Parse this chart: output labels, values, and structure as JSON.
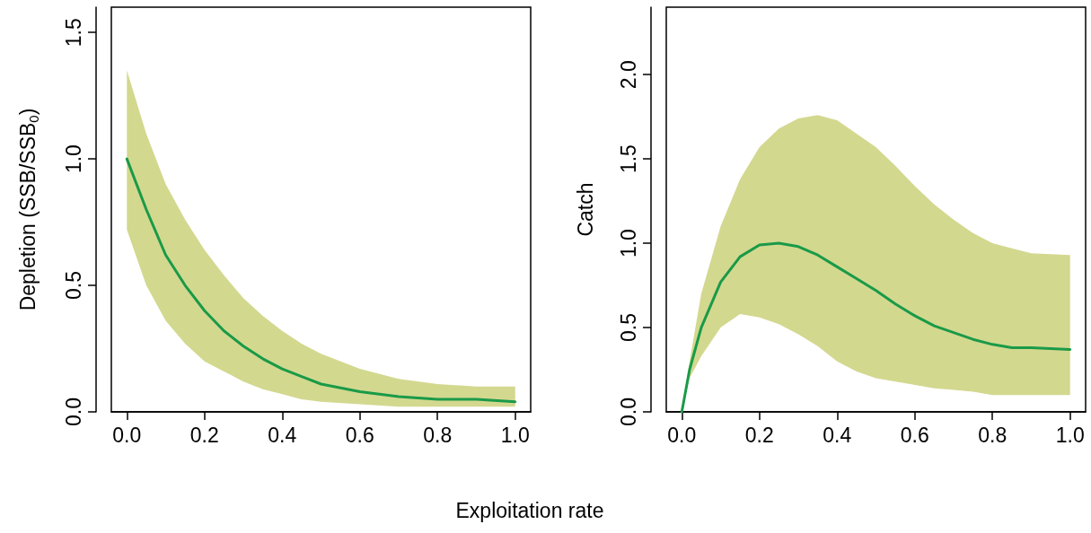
{
  "chart_data": [
    {
      "type": "line",
      "xlabel": "Exploitation rate",
      "ylabel": "Depletion (SSB/SSB$_{0}$)",
      "x": [
        0,
        0.05,
        0.1,
        0.15,
        0.2,
        0.25,
        0.3,
        0.35,
        0.4,
        0.45,
        0.5,
        0.6,
        0.7,
        0.8,
        0.9,
        1.0
      ],
      "series": [
        {
          "color": "#1a9a48",
          "values": [
            1.0,
            0.8,
            0.62,
            0.5,
            0.4,
            0.32,
            0.26,
            0.21,
            0.17,
            0.14,
            0.11,
            0.08,
            0.06,
            0.05,
            0.05,
            0.04
          ],
          "lower": [
            0.72,
            0.5,
            0.36,
            0.27,
            0.2,
            0.16,
            0.12,
            0.09,
            0.07,
            0.05,
            0.04,
            0.03,
            0.02,
            0.02,
            0.02,
            0.02
          ],
          "upper": [
            1.35,
            1.1,
            0.9,
            0.76,
            0.64,
            0.54,
            0.45,
            0.38,
            0.32,
            0.27,
            0.23,
            0.17,
            0.13,
            0.11,
            0.1,
            0.1
          ]
        }
      ],
      "xlim": [
        -0.04,
        1.04
      ],
      "xticks": [
        {
          "value": 0,
          "label": "0.0"
        },
        {
          "value": 0.2,
          "label": "0.2"
        },
        {
          "value": 0.4,
          "label": "0.4"
        },
        {
          "value": 0.6,
          "label": "0.6"
        },
        {
          "value": 0.8,
          "label": "0.8"
        },
        {
          "value": 1,
          "label": "1.0"
        }
      ],
      "ylim": [
        0,
        1.6
      ],
      "yticks": [
        {
          "value": 0,
          "label": "0.0"
        },
        {
          "value": 0.5,
          "label": "0.5"
        },
        {
          "value": 1,
          "label": "1.0"
        },
        {
          "value": 1.5,
          "label": "1.5"
        }
      ],
      "grid": false,
      "marker": "none",
      "line_style": "solid"
    },
    {
      "type": "line",
      "ylabel": "Catch",
      "x": [
        0,
        0.02,
        0.05,
        0.1,
        0.15,
        0.2,
        0.25,
        0.3,
        0.35,
        0.4,
        0.45,
        0.5,
        0.55,
        0.6,
        0.65,
        0.7,
        0.75,
        0.8,
        0.85,
        0.9,
        1.0
      ],
      "series": [
        {
          "color": "#1a9a48",
          "values": [
            0,
            0.25,
            0.5,
            0.77,
            0.92,
            0.99,
            1.0,
            0.98,
            0.93,
            0.86,
            0.79,
            0.72,
            0.64,
            0.57,
            0.51,
            0.47,
            0.43,
            0.4,
            0.38,
            0.38,
            0.37
          ],
          "lower": [
            0,
            0.2,
            0.33,
            0.5,
            0.58,
            0.56,
            0.52,
            0.46,
            0.39,
            0.3,
            0.24,
            0.2,
            0.18,
            0.16,
            0.14,
            0.13,
            0.12,
            0.1,
            0.1,
            0.1,
            0.1
          ],
          "upper": [
            0,
            0.3,
            0.7,
            1.1,
            1.38,
            1.57,
            1.68,
            1.74,
            1.76,
            1.73,
            1.65,
            1.57,
            1.46,
            1.34,
            1.23,
            1.14,
            1.06,
            1.0,
            0.97,
            0.94,
            0.93
          ]
        }
      ],
      "xlim": [
        -0.04,
        1.04
      ],
      "xticks": [
        {
          "value": 0,
          "label": "0.0"
        },
        {
          "value": 0.2,
          "label": "0.2"
        },
        {
          "value": 0.4,
          "label": "0.4"
        },
        {
          "value": 0.6,
          "label": "0.6"
        },
        {
          "value": 0.8,
          "label": "0.8"
        },
        {
          "value": 1,
          "label": "1.0"
        }
      ],
      "ylim": [
        0,
        2.4
      ],
      "yticks": [
        {
          "value": 0,
          "label": "0.0"
        },
        {
          "value": 0.5,
          "label": "0.5"
        },
        {
          "value": 1,
          "label": "1.0"
        },
        {
          "value": 1.5,
          "label": "1.5"
        },
        {
          "value": 2,
          "label": "2.0"
        }
      ],
      "grid": false,
      "marker": "none",
      "line_style": "solid"
    }
  ]
}
